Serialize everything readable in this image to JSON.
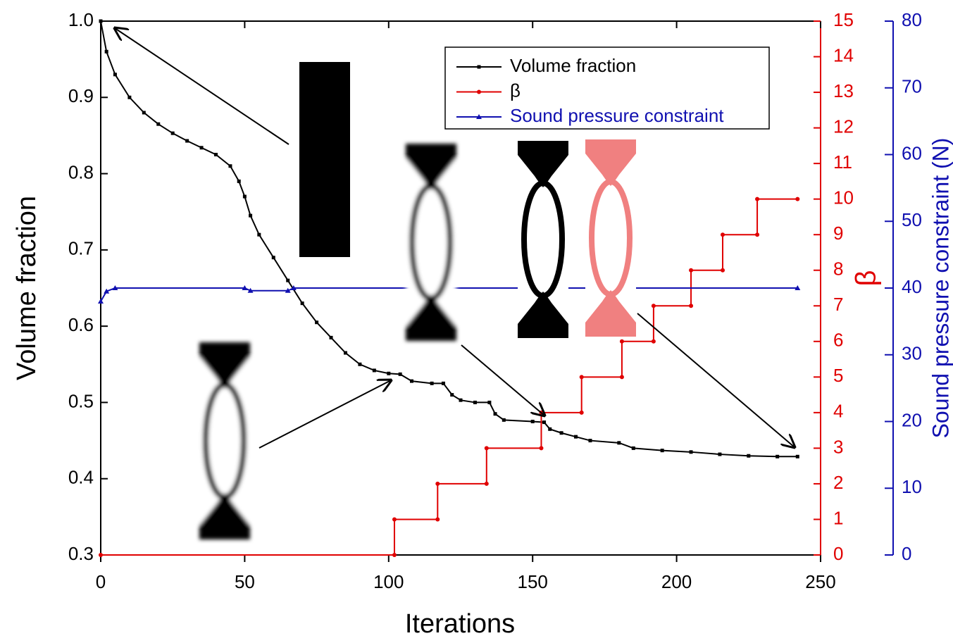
{
  "chart_data": {
    "type": "line",
    "xlabel": "Iterations",
    "ylabel": "Volume fraction",
    "y2label": "β",
    "y3label": "Sound pressure constraint (N)",
    "xlim": [
      0,
      250
    ],
    "xticks": [
      0,
      50,
      100,
      150,
      200,
      250
    ],
    "ylim": [
      0.3,
      1
    ],
    "yticks": [
      0.3,
      0.4,
      0.5,
      0.6,
      0.7,
      0.8,
      0.9,
      {
        "value": 1,
        "label": "1.0"
      }
    ],
    "y2lim": [
      0,
      15
    ],
    "y2ticks": [
      0,
      1,
      2,
      3,
      4,
      5,
      6,
      7,
      8,
      9,
      10,
      11,
      12,
      13,
      14,
      15
    ],
    "y3lim": [
      0,
      80
    ],
    "y3ticks": [
      0,
      10,
      20,
      30,
      40,
      50,
      60,
      70,
      80
    ],
    "legend": "top-right",
    "series": [
      {
        "name": "Volume fraction",
        "color": "#000000",
        "marker": "square",
        "axis": "y",
        "x": [
          0,
          2,
          5,
          10,
          15,
          20,
          25,
          30,
          35,
          40,
          45,
          48,
          50,
          52,
          55,
          60,
          65,
          70,
          75,
          80,
          85,
          90,
          95,
          100,
          104,
          108,
          115,
          119,
          122,
          125,
          130,
          135,
          137,
          140,
          150,
          154,
          156,
          160,
          165,
          170,
          180,
          185,
          195,
          205,
          215,
          225,
          235,
          242
        ],
        "values": [
          1,
          0.96,
          0.93,
          0.9,
          0.88,
          0.865,
          0.853,
          0.843,
          0.834,
          0.825,
          0.81,
          0.79,
          0.77,
          0.745,
          0.72,
          0.69,
          0.66,
          0.63,
          0.605,
          0.585,
          0.565,
          0.55,
          0.542,
          0.538,
          0.537,
          0.528,
          0.525,
          0.525,
          0.51,
          0.503,
          0.5,
          0.5,
          0.485,
          0.477,
          0.475,
          0.474,
          0.465,
          0.46,
          0.455,
          0.45,
          0.447,
          0.44,
          0.437,
          0.435,
          0.432,
          0.43,
          0.429,
          0.429
        ]
      },
      {
        "name": "β",
        "color": "#e00000",
        "marker": "circle",
        "axis": "y2",
        "x": [
          0,
          102,
          102,
          117,
          117,
          134,
          134,
          153,
          153,
          167,
          167,
          181,
          181,
          192,
          192,
          205,
          205,
          216,
          216,
          228,
          228,
          242
        ],
        "values": [
          0,
          0,
          1,
          1,
          2,
          2,
          3,
          3,
          4,
          4,
          5,
          5,
          6,
          6,
          7,
          7,
          8,
          8,
          9,
          9,
          10,
          10
        ]
      },
      {
        "name": "Sound pressure constraint",
        "color": "#1010b0",
        "marker": "triangle",
        "axis": "y3",
        "x": [
          0,
          2,
          5,
          50,
          52,
          65,
          67,
          242
        ],
        "values": [
          38,
          39.5,
          40,
          40,
          39.6,
          39.6,
          40,
          40
        ]
      }
    ]
  }
}
